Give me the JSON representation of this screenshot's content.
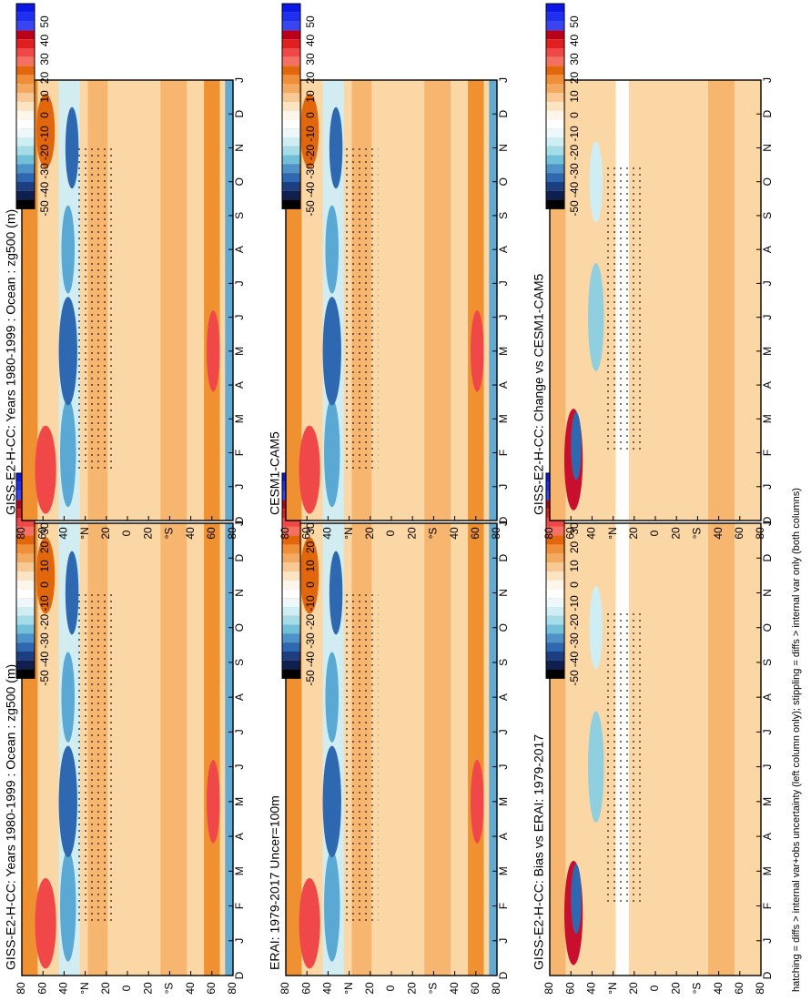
{
  "figure": {
    "footnote": "hatching = diffs > internal var+obs uncertainty (left column only); stippling = diffs > internal var only (both columns)",
    "orientation": "rotated 90° counter-clockwise"
  },
  "chart_data": [
    {
      "type": "heatmap",
      "title": "GISS-E2-H-CC: Years 1980-1999 : Ocean : zg500 (m)",
      "x_ticks": [
        "D",
        "J",
        "F",
        "M",
        "A",
        "M",
        "J",
        "J",
        "A",
        "S",
        "O",
        "N",
        "D",
        "J"
      ],
      "y_ticks": [
        "80",
        "60",
        "40",
        "°N",
        "20",
        "0",
        "20",
        "°S",
        "40",
        "60",
        "80"
      ],
      "colorbar": {
        "ticks": [
          "50",
          "40",
          "30",
          "20",
          "10",
          "0",
          "-10",
          "-20",
          "-30",
          "-40",
          "-50"
        ],
        "colors": [
          "#0b18e6",
          "#1f2ff0",
          "#3a45f2",
          "#b8001a",
          "#e02020",
          "#f04848",
          "#f47060",
          "#e2660c",
          "#ef8f3a",
          "#f4a960",
          "#f8c995",
          "#fce4c2",
          "#fef6ea",
          "#ffffff",
          "#eef8fa",
          "#cfeef4",
          "#a4dce8",
          "#72bfd9",
          "#4d93c9",
          "#2e68b0",
          "#1d3f82",
          "#0f1f4f",
          "#000000"
        ]
      },
      "stippled": true
    },
    {
      "type": "heatmap",
      "title": "GISS-E2-H-CC: Years 1980-1999 : Ocean : zg500 (m)",
      "x_ticks": [
        "D",
        "J",
        "F",
        "M",
        "A",
        "M",
        "J",
        "J",
        "A",
        "S",
        "O",
        "N",
        "D",
        "J"
      ],
      "y_ticks": [
        "80",
        "60",
        "40",
        "°N",
        "20",
        "0",
        "20",
        "°S",
        "40",
        "60",
        "80"
      ],
      "colorbar": {
        "ticks": [
          "50",
          "40",
          "30",
          "20",
          "10",
          "0",
          "-10",
          "-20",
          "-30",
          "-40",
          "-50"
        ]
      },
      "stippled": true
    },
    {
      "type": "heatmap",
      "title": "ERAI: 1979-2017 Uncer=100m",
      "x_ticks": [
        "D",
        "J",
        "F",
        "M",
        "A",
        "M",
        "J",
        "J",
        "A",
        "S",
        "O",
        "N",
        "D",
        "J"
      ],
      "y_ticks": [
        "80",
        "60",
        "40",
        "°N",
        "20",
        "0",
        "20",
        "°S",
        "40",
        "60",
        "80"
      ],
      "colorbar": {
        "ticks": [
          "50",
          "40",
          "30",
          "20",
          "10",
          "0",
          "-10",
          "-20",
          "-30",
          "-40",
          "-50"
        ]
      },
      "stippled": true
    },
    {
      "type": "heatmap",
      "title": "CESM1-CAM5",
      "x_ticks": [
        "D",
        "J",
        "F",
        "M",
        "A",
        "M",
        "J",
        "J",
        "A",
        "S",
        "O",
        "N",
        "D",
        "J"
      ],
      "y_ticks": [
        "80",
        "60",
        "40",
        "°N",
        "20",
        "0",
        "20",
        "°S",
        "40",
        "60",
        "80"
      ],
      "colorbar": {
        "ticks": [
          "50",
          "40",
          "30",
          "20",
          "10",
          "0",
          "-10",
          "-20",
          "-30",
          "-40",
          "-50"
        ]
      },
      "stippled": true
    },
    {
      "type": "heatmap",
      "title": "GISS-E2-H-CC: Bias vs ERAI: 1979-2017",
      "x_ticks": [
        "D",
        "J",
        "F",
        "M",
        "A",
        "M",
        "J",
        "J",
        "A",
        "S",
        "O",
        "N",
        "D",
        "J"
      ],
      "y_ticks": [
        "80",
        "60",
        "40",
        "°N",
        "20",
        "0",
        "20",
        "°S",
        "40",
        "60",
        "80"
      ],
      "colorbar": {
        "ticks": [
          "50",
          "40",
          "30",
          "20",
          "10",
          "0",
          "-10",
          "-20",
          "-30",
          "-40",
          "-50"
        ]
      },
      "stippled": true
    },
    {
      "type": "heatmap",
      "title": "GISS-E2-H-CC: Change vs CESM1-CAM5",
      "x_ticks": [
        "D",
        "J",
        "F",
        "M",
        "A",
        "M",
        "J",
        "J",
        "A",
        "S",
        "O",
        "N",
        "D",
        "J"
      ],
      "y_ticks": [
        "80",
        "60",
        "40",
        "°N",
        "20",
        "0",
        "20",
        "°S",
        "40",
        "60",
        "80"
      ],
      "colorbar": {
        "ticks": [
          "50",
          "40",
          "30",
          "20",
          "10",
          "0",
          "-10",
          "-20",
          "-30",
          "-40",
          "-50"
        ]
      },
      "stippled": true
    }
  ]
}
